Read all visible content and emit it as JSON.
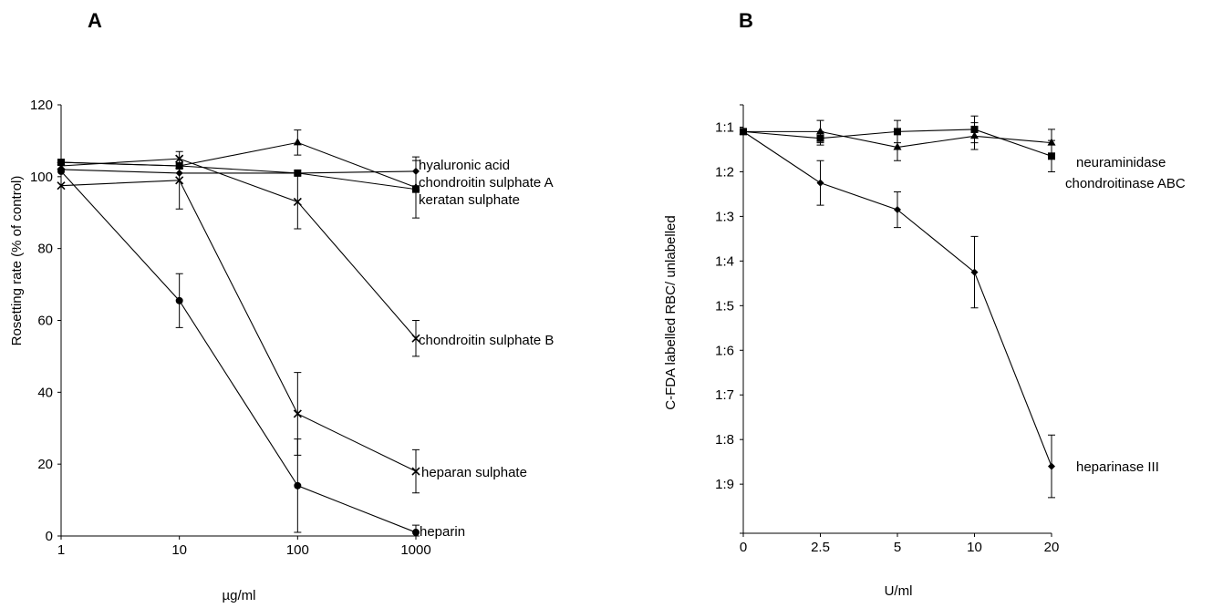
{
  "chart_data": [
    {
      "panel_label": "A",
      "type": "line",
      "xlabel": "µg/ml",
      "ylabel": "Rosetting rate (% of control)",
      "x_scale": "log",
      "x": [
        1,
        10,
        100,
        1000
      ],
      "x_ticks": [
        "1",
        "10",
        "100",
        "1000"
      ],
      "ylim": [
        0,
        120
      ],
      "y_ticks": [
        "0",
        "20",
        "40",
        "60",
        "80",
        "100",
        "120"
      ],
      "grid": false,
      "series": [
        {
          "name": "hyaluronic acid",
          "marker": "diamond",
          "values": [
            102,
            101,
            101,
            101.5
          ],
          "errors": [
            0,
            0,
            0,
            4
          ]
        },
        {
          "name": "chondroitin sulphate A",
          "marker": "triangle",
          "values": [
            104,
            103,
            109.5,
            97
          ],
          "errors": [
            0,
            0,
            3.5,
            0
          ]
        },
        {
          "name": "keratan sulphate",
          "marker": "square",
          "values": [
            104,
            103,
            101,
            96.5
          ],
          "errors": [
            0,
            0,
            0,
            8
          ]
        },
        {
          "name": "chondroitin sulphate B",
          "marker": "x",
          "values": [
            103,
            105,
            93,
            55
          ],
          "errors": [
            0,
            0,
            7.5,
            5
          ]
        },
        {
          "name": "heparan sulphate",
          "marker": "x",
          "values": [
            97.5,
            99,
            34,
            18
          ],
          "errors": [
            0,
            8,
            11.5,
            6
          ]
        },
        {
          "name": "heparin",
          "marker": "circle",
          "values": [
            101.5,
            65.5,
            14,
            1
          ],
          "errors": [
            0,
            7.5,
            13,
            2
          ]
        }
      ]
    },
    {
      "panel_label": "B",
      "type": "line",
      "xlabel": "U/ml",
      "ylabel": "C-FDA labelled RBC/ unlabelled",
      "x_ticks": [
        "0",
        "2.5",
        "5",
        "10",
        "20"
      ],
      "x": [
        0,
        2.5,
        5,
        10,
        20
      ],
      "y_ticks": [
        "1:1",
        "1:2",
        "1:3",
        "1:4",
        "1:5",
        "1:6",
        "1:7",
        "1:8",
        "1:9"
      ],
      "y_axis_top": 0.5,
      "y_axis_bottom": 10.1,
      "grid": false,
      "series": [
        {
          "name": "neuraminidase",
          "marker": "triangle",
          "values": [
            1.1,
            1.1,
            1.45,
            1.2,
            1.35
          ],
          "errors": [
            0,
            0.25,
            0.3,
            0.3,
            0.3
          ]
        },
        {
          "name": "chondroitinase ABC",
          "marker": "square",
          "values": [
            1.1,
            1.25,
            1.1,
            1.05,
            1.65
          ],
          "errors": [
            0,
            0.15,
            0.25,
            0.3,
            0.35
          ]
        },
        {
          "name": "heparinase III",
          "marker": "diamond",
          "values": [
            1.1,
            2.25,
            2.85,
            4.25,
            8.6
          ],
          "errors": [
            0,
            0.5,
            0.4,
            0.8,
            0.7
          ]
        }
      ]
    }
  ]
}
